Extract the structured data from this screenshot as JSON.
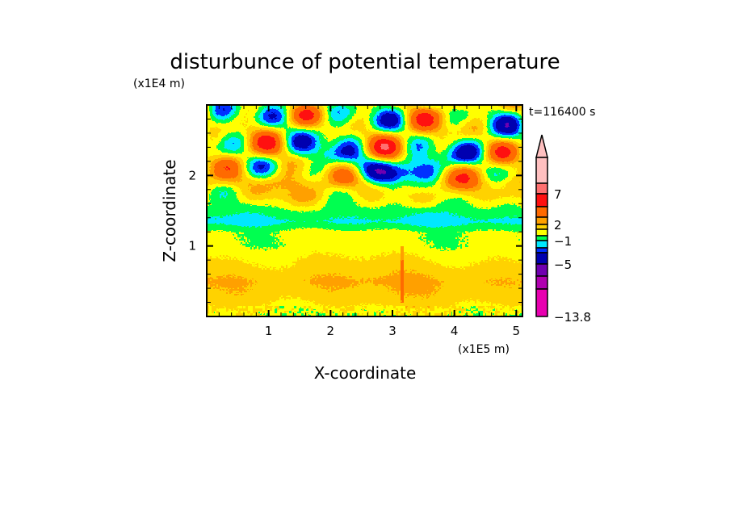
{
  "chart_data": {
    "type": "heatmap",
    "title": "disturbunce of potential temperature",
    "xlabel": "X-coordinate",
    "ylabel": "Z-coordinate",
    "x_unit": "(x1E5 m)",
    "y_unit": "(x1E4 m)",
    "time_label": "t=116400 s",
    "xlim": [
      0,
      5.1
    ],
    "ylim": [
      0,
      3.0
    ],
    "x_ticks": [
      "1",
      "2",
      "3",
      "4",
      "5"
    ],
    "x_tick_values": [
      1,
      2,
      3,
      4,
      5
    ],
    "y_ticks": [
      "1",
      "2"
    ],
    "y_tick_values": [
      1,
      2
    ],
    "colorbar": {
      "labels": [
        "7",
        "2",
        "−1",
        "−5",
        "−13.8"
      ],
      "min": -13.8,
      "colors_top_to_bottom": [
        "#ffc0c0",
        "#ff7070",
        "#ff1010",
        "#ff6a00",
        "#ffa000",
        "#ffd200",
        "#ffff00",
        "#00ff50",
        "#00e8ff",
        "#0030ff",
        "#0000b0",
        "#7000b0",
        "#b000b0",
        "#e800b0"
      ],
      "extend": "max"
    }
  }
}
